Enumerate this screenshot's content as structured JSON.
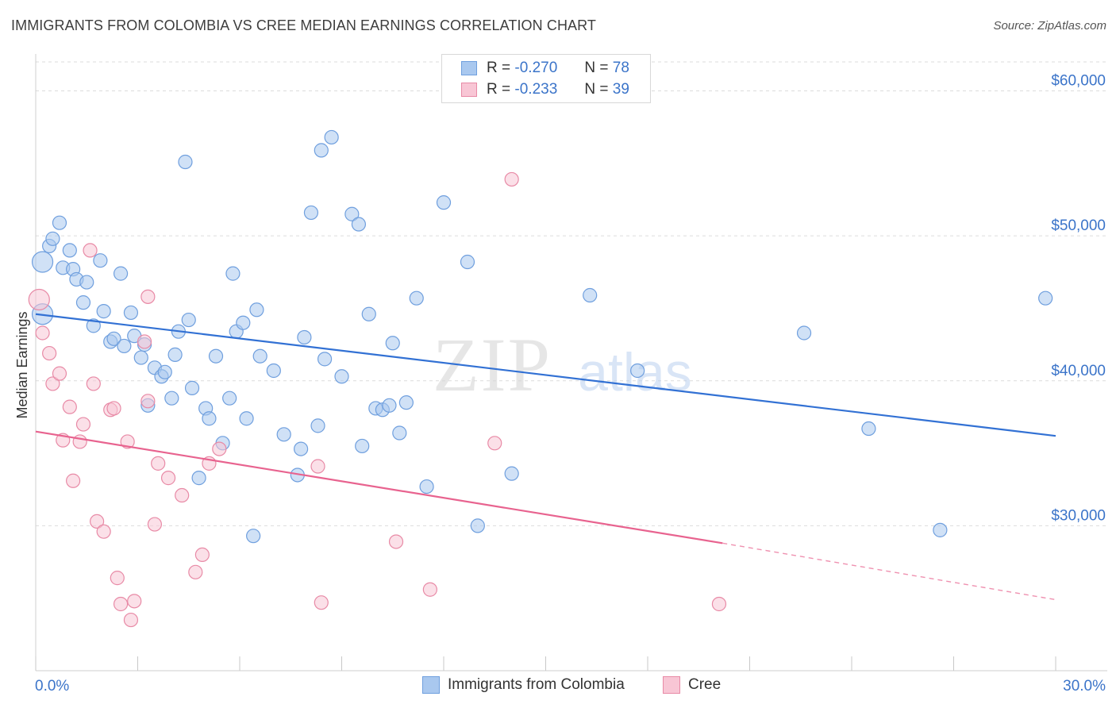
{
  "title": "IMMIGRANTS FROM COLOMBIA VS CREE MEDIAN EARNINGS CORRELATION CHART",
  "source": "Source: ZipAtlas.com",
  "watermark": {
    "zip": "ZIP",
    "atlas": "atlas"
  },
  "legend": {
    "rows": [
      {
        "r_label": "R =",
        "r_value": "-0.270",
        "n_label": "N =",
        "n_value": "78",
        "color": "#a9c8ef",
        "border": "#6f9fde"
      },
      {
        "r_label": "R =",
        "r_value": "-0.233",
        "n_label": "N =",
        "n_value": "39",
        "color": "#f8c6d5",
        "border": "#e88aa6"
      }
    ]
  },
  "bottom_legend": {
    "series1": "Immigrants from Colombia",
    "series2": "Cree"
  },
  "colors": {
    "blue": "#3271d4",
    "blue_fill": "#a9c8ef",
    "pink": "#e8638f",
    "pink_fill": "#f8c6d5",
    "axis_label": "#3b74c9"
  },
  "chart_data": {
    "type": "scatter",
    "title": "IMMIGRANTS FROM COLOMBIA VS CREE MEDIAN EARNINGS CORRELATION CHART",
    "xlabel": "",
    "ylabel": "Median Earnings",
    "xlim": [
      0,
      30
    ],
    "ylim": [
      20000,
      62000
    ],
    "x_tick_labels": [
      "0.0%",
      "30.0%"
    ],
    "y_ticks": [
      30000,
      40000,
      50000,
      60000
    ],
    "y_tick_labels": [
      "$30,000",
      "$40,000",
      "$50,000",
      "$60,000"
    ],
    "grid": true,
    "legend_position": "top-center",
    "series": [
      {
        "name": "Immigrants from Colombia",
        "color": "#a9c8ef",
        "trend": {
          "x": [
            0.0,
            30.0
          ],
          "y": [
            44600,
            36200
          ],
          "style": "solid"
        },
        "points": [
          [
            0.2,
            48200
          ],
          [
            0.2,
            44600
          ],
          [
            0.4,
            49300
          ],
          [
            0.5,
            49800
          ],
          [
            0.7,
            50900
          ],
          [
            0.8,
            47800
          ],
          [
            1.0,
            49000
          ],
          [
            1.1,
            47700
          ],
          [
            1.2,
            47000
          ],
          [
            1.5,
            46800
          ],
          [
            1.4,
            45400
          ],
          [
            1.7,
            43800
          ],
          [
            1.9,
            48300
          ],
          [
            2.0,
            44800
          ],
          [
            2.2,
            42700
          ],
          [
            2.3,
            42900
          ],
          [
            2.5,
            47400
          ],
          [
            2.6,
            42400
          ],
          [
            2.8,
            44700
          ],
          [
            2.9,
            43100
          ],
          [
            3.1,
            41600
          ],
          [
            3.2,
            42500
          ],
          [
            3.3,
            38300
          ],
          [
            3.5,
            40900
          ],
          [
            3.7,
            40300
          ],
          [
            3.8,
            40600
          ],
          [
            4.0,
            38800
          ],
          [
            4.1,
            41800
          ],
          [
            4.2,
            43400
          ],
          [
            4.5,
            44200
          ],
          [
            4.6,
            39500
          ],
          [
            4.8,
            33300
          ],
          [
            5.0,
            38100
          ],
          [
            5.1,
            37400
          ],
          [
            5.3,
            41700
          ],
          [
            5.5,
            35700
          ],
          [
            5.7,
            38800
          ],
          [
            5.8,
            47400
          ],
          [
            5.9,
            43400
          ],
          [
            6.1,
            44000
          ],
          [
            6.2,
            37400
          ],
          [
            6.4,
            29300
          ],
          [
            6.5,
            44900
          ],
          [
            6.6,
            41700
          ],
          [
            7.0,
            40700
          ],
          [
            7.3,
            36300
          ],
          [
            7.7,
            33500
          ],
          [
            7.8,
            35300
          ],
          [
            7.9,
            43000
          ],
          [
            8.1,
            51600
          ],
          [
            8.3,
            36900
          ],
          [
            8.4,
            55900
          ],
          [
            8.5,
            41500
          ],
          [
            8.7,
            56800
          ],
          [
            9.0,
            40300
          ],
          [
            9.3,
            51500
          ],
          [
            9.5,
            50800
          ],
          [
            9.6,
            35500
          ],
          [
            9.8,
            44600
          ],
          [
            10.0,
            38100
          ],
          [
            10.2,
            38000
          ],
          [
            10.4,
            38300
          ],
          [
            10.5,
            42600
          ],
          [
            10.7,
            36400
          ],
          [
            10.9,
            38500
          ],
          [
            11.2,
            45700
          ],
          [
            11.5,
            32700
          ],
          [
            12.0,
            52300
          ],
          [
            12.7,
            48200
          ],
          [
            13.0,
            30000
          ],
          [
            14.0,
            33600
          ],
          [
            4.4,
            55100
          ],
          [
            16.3,
            45900
          ],
          [
            17.7,
            40700
          ],
          [
            22.6,
            43300
          ],
          [
            24.5,
            36700
          ],
          [
            26.6,
            29700
          ],
          [
            29.7,
            45700
          ]
        ]
      },
      {
        "name": "Cree",
        "color": "#f8c6d5",
        "trend": {
          "x": [
            0.0,
            20.2
          ],
          "y": [
            36500,
            28800
          ],
          "style": "solid",
          "dashed_extension_to": [
            30.0,
            24900
          ]
        },
        "points": [
          [
            0.1,
            45600
          ],
          [
            0.2,
            43300
          ],
          [
            0.4,
            41900
          ],
          [
            0.5,
            39800
          ],
          [
            0.7,
            40500
          ],
          [
            0.8,
            35900
          ],
          [
            1.0,
            38200
          ],
          [
            1.1,
            33100
          ],
          [
            1.3,
            35800
          ],
          [
            1.4,
            37000
          ],
          [
            1.6,
            49000
          ],
          [
            1.7,
            39800
          ],
          [
            1.8,
            30300
          ],
          [
            2.0,
            29600
          ],
          [
            2.2,
            38000
          ],
          [
            2.3,
            38100
          ],
          [
            2.4,
            26400
          ],
          [
            2.5,
            24600
          ],
          [
            2.7,
            35800
          ],
          [
            2.8,
            23500
          ],
          [
            2.9,
            24800
          ],
          [
            3.2,
            42700
          ],
          [
            3.3,
            45800
          ],
          [
            3.3,
            38600
          ],
          [
            3.5,
            30100
          ],
          [
            3.6,
            34300
          ],
          [
            3.9,
            33300
          ],
          [
            4.3,
            32100
          ],
          [
            4.7,
            26800
          ],
          [
            4.9,
            28000
          ],
          [
            5.1,
            34300
          ],
          [
            5.4,
            35300
          ],
          [
            8.3,
            34100
          ],
          [
            8.4,
            24700
          ],
          [
            10.6,
            28900
          ],
          [
            11.6,
            25600
          ],
          [
            13.5,
            35700
          ],
          [
            14.0,
            53900
          ],
          [
            20.1,
            24600
          ]
        ]
      }
    ]
  }
}
